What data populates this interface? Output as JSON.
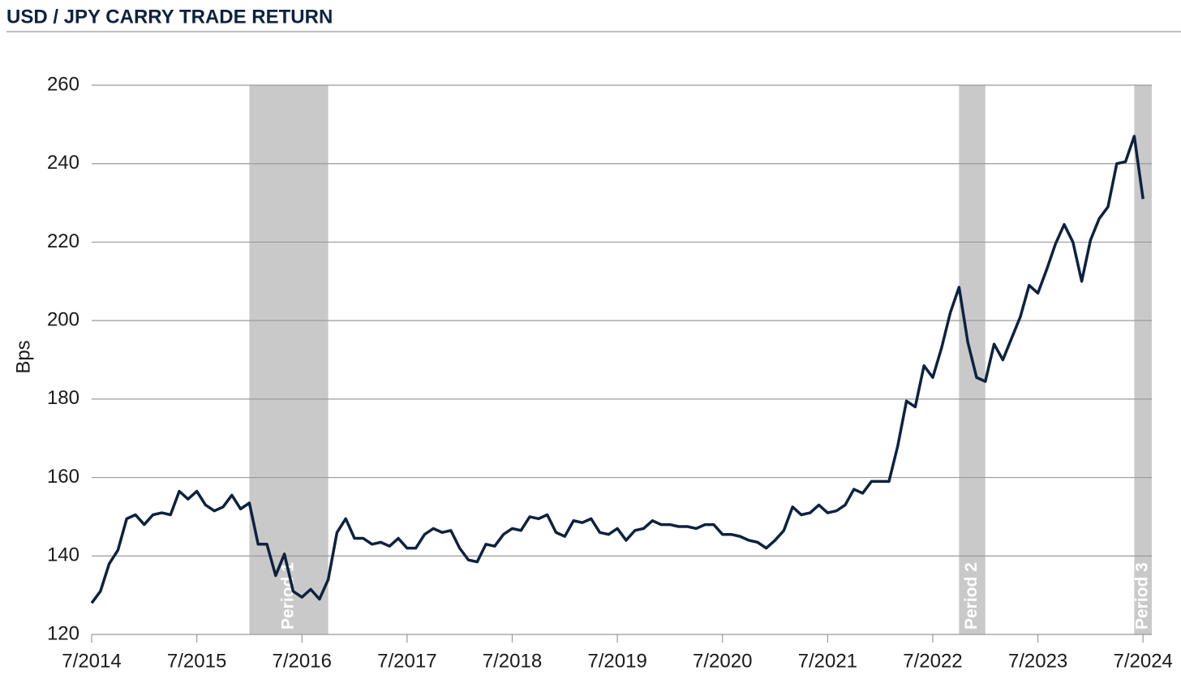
{
  "chart_data": {
    "type": "line",
    "title": "USD / JPY CARRY TRADE RETURN",
    "y_label": "Bps",
    "color": "#0d2240",
    "band_color": "#c9c9c9",
    "grid": true,
    "x": [
      "2014-07",
      "2014-08",
      "2014-09",
      "2014-10",
      "2014-11",
      "2014-12",
      "2015-01",
      "2015-02",
      "2015-03",
      "2015-04",
      "2015-05",
      "2015-06",
      "2015-07",
      "2015-08",
      "2015-09",
      "2015-10",
      "2015-11",
      "2015-12",
      "2016-01",
      "2016-02",
      "2016-03",
      "2016-04",
      "2016-05",
      "2016-06",
      "2016-07",
      "2016-08",
      "2016-09",
      "2016-10",
      "2016-11",
      "2016-12",
      "2017-01",
      "2017-02",
      "2017-03",
      "2017-04",
      "2017-05",
      "2017-06",
      "2017-07",
      "2017-08",
      "2017-09",
      "2017-10",
      "2017-11",
      "2017-12",
      "2018-01",
      "2018-02",
      "2018-03",
      "2018-04",
      "2018-05",
      "2018-06",
      "2018-07",
      "2018-08",
      "2018-09",
      "2018-10",
      "2018-11",
      "2018-12",
      "2019-01",
      "2019-02",
      "2019-03",
      "2019-04",
      "2019-05",
      "2019-06",
      "2019-07",
      "2019-08",
      "2019-09",
      "2019-10",
      "2019-11",
      "2019-12",
      "2020-01",
      "2020-02",
      "2020-03",
      "2020-04",
      "2020-05",
      "2020-06",
      "2020-07",
      "2020-08",
      "2020-09",
      "2020-10",
      "2020-11",
      "2020-12",
      "2021-01",
      "2021-02",
      "2021-03",
      "2021-04",
      "2021-05",
      "2021-06",
      "2021-07",
      "2021-08",
      "2021-09",
      "2021-10",
      "2021-11",
      "2021-12",
      "2022-01",
      "2022-02",
      "2022-03",
      "2022-04",
      "2022-05",
      "2022-06",
      "2022-07",
      "2022-08",
      "2022-09",
      "2022-10",
      "2022-11",
      "2022-12",
      "2023-01",
      "2023-02",
      "2023-03",
      "2023-04",
      "2023-05",
      "2023-06",
      "2023-07",
      "2023-08",
      "2023-09",
      "2023-10",
      "2023-11",
      "2023-12",
      "2024-01",
      "2024-02",
      "2024-03",
      "2024-04",
      "2024-05",
      "2024-06",
      "2024-07"
    ],
    "values": [
      128,
      131,
      138,
      141.5,
      149.5,
      150.5,
      148,
      150.5,
      151,
      150.5,
      156.5,
      154.5,
      156.5,
      153,
      151.5,
      152.5,
      155.5,
      152,
      153.5,
      143,
      143,
      135,
      140.5,
      131,
      129.5,
      131.5,
      129,
      134,
      146,
      149.5,
      144.5,
      144.5,
      143,
      143.5,
      142.5,
      144.5,
      142,
      142,
      145.5,
      147,
      146,
      146.5,
      142,
      139,
      138.5,
      143,
      142.5,
      145.5,
      147,
      146.5,
      150,
      149.5,
      150.5,
      146,
      145,
      149,
      148.5,
      149.5,
      146,
      145.5,
      147,
      144,
      146.5,
      147,
      149,
      148,
      148,
      147.5,
      147.5,
      147,
      148,
      148,
      145.5,
      145.5,
      145,
      144,
      143.5,
      142,
      144,
      146.5,
      152.5,
      150.5,
      151,
      153,
      151,
      151.5,
      153,
      157,
      156,
      159,
      159,
      159,
      168,
      179.5,
      178,
      188.5,
      185.5,
      193,
      202,
      208.5,
      194.5,
      185.5,
      184.5,
      194,
      190,
      195.5,
      201,
      209,
      207,
      213,
      219.5,
      224.5,
      220,
      210,
      220.5,
      226,
      229,
      240,
      240.5,
      247,
      231
    ],
    "xlim": [
      "2014-07",
      "2024-08"
    ],
    "xticks": [
      {
        "value": "2014-07",
        "label": "7/2014"
      },
      {
        "value": "2015-07",
        "label": "7/2015"
      },
      {
        "value": "2016-07",
        "label": "7/2016"
      },
      {
        "value": "2017-07",
        "label": "7/2017"
      },
      {
        "value": "2018-07",
        "label": "7/2018"
      },
      {
        "value": "2019-07",
        "label": "7/2019"
      },
      {
        "value": "2020-07",
        "label": "7/2020"
      },
      {
        "value": "2021-07",
        "label": "7/2021"
      },
      {
        "value": "2022-07",
        "label": "7/2022"
      },
      {
        "value": "2023-07",
        "label": "7/2023"
      },
      {
        "value": "2024-07",
        "label": "7/2024"
      }
    ],
    "ylim": [
      120,
      260
    ],
    "yticks": [
      120,
      140,
      160,
      180,
      200,
      220,
      240,
      260
    ],
    "shaded_periods": [
      {
        "label": "Period 1",
        "start": "2016-01",
        "end": "2016-10"
      },
      {
        "label": "Period 2",
        "start": "2022-10",
        "end": "2023-01"
      },
      {
        "label": "Period 3",
        "start": "2024-06",
        "end": "2024-08"
      }
    ]
  }
}
